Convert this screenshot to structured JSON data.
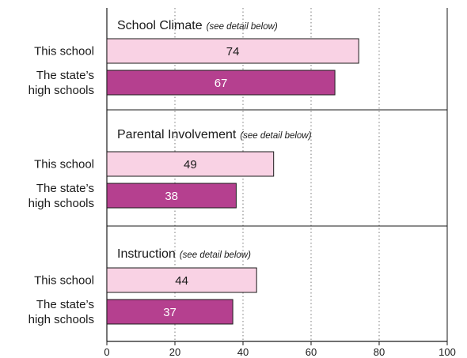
{
  "chart_data": {
    "type": "bar",
    "orientation": "horizontal",
    "xlim": [
      0,
      100
    ],
    "x_ticks": [
      "0",
      "20",
      "40",
      "60",
      "80",
      "100"
    ],
    "grid": "dotted vertical",
    "groups": [
      {
        "title": "School Climate",
        "note": "(see detail below)",
        "bars": [
          {
            "label": "This school",
            "value": 74,
            "value_text": "74"
          },
          {
            "label": "The state’s high schools",
            "value": 67,
            "value_text": "67"
          }
        ]
      },
      {
        "title": "Parental Involvement",
        "note": "(see detail below)",
        "bars": [
          {
            "label": "This school",
            "value": 49,
            "value_text": "49"
          },
          {
            "label": "The state’s high schools",
            "value": 38,
            "value_text": "38"
          }
        ]
      },
      {
        "title": "Instruction",
        "note": "(see detail below)",
        "bars": [
          {
            "label": "This school",
            "value": 44,
            "value_text": "44"
          },
          {
            "label": "The state’s high schools",
            "value": 37,
            "value_text": "37"
          }
        ]
      }
    ],
    "colors": {
      "this_school": "#f9d2e4",
      "state": "#b5408f",
      "this_school_text": "#1a1a1a",
      "state_text": "#ffffff"
    }
  }
}
